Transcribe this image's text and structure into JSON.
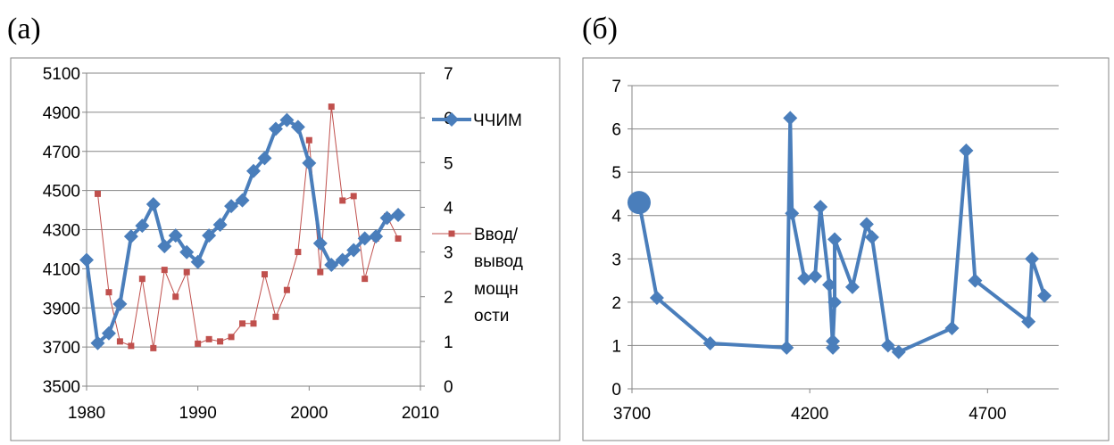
{
  "panels": {
    "a_label": "(а)",
    "b_label": "(б)"
  },
  "colors": {
    "blue": "#4a7ebb",
    "red": "#c0504d",
    "grid": "#868686",
    "frame": "#868686"
  },
  "chart_data": [
    {
      "type": "line",
      "panel": "(а)",
      "title": "",
      "xlabel": "",
      "ylabel": "",
      "x": [
        1980,
        1981,
        1982,
        1983,
        1984,
        1985,
        1986,
        1987,
        1988,
        1989,
        1990,
        1991,
        1992,
        1993,
        1994,
        1995,
        1996,
        1997,
        1998,
        1999,
        2000,
        2001,
        2002,
        2003,
        2004,
        2005,
        2006,
        2007,
        2008
      ],
      "xlim": [
        1980,
        2010
      ],
      "xticks": [
        "1980",
        "1990",
        "2000",
        "2010"
      ],
      "ylim_left": [
        3500,
        5100
      ],
      "yticks_left": [
        "3500",
        "3700",
        "3900",
        "4100",
        "4300",
        "4500",
        "4700",
        "4900",
        "5100"
      ],
      "ylim_right": [
        0,
        7
      ],
      "yticks_right": [
        "0",
        "1",
        "2",
        "3",
        "4",
        "5",
        "6",
        "7"
      ],
      "grid": true,
      "legend_position": "right",
      "series": [
        {
          "name": "ЧЧИМ",
          "axis": "left",
          "color": "#4a7ebb",
          "marker": "diamond",
          "values": [
            4145,
            3720,
            3770,
            3920,
            4265,
            4320,
            4430,
            4215,
            4270,
            4185,
            4135,
            4270,
            4325,
            4420,
            4450,
            4600,
            4665,
            4815,
            4860,
            4825,
            4640,
            4230,
            4120,
            4145,
            4195,
            4255,
            4265,
            4360,
            4375
          ]
        },
        {
          "name": "Ввод/вывод мощности",
          "legend_lines": [
            "Ввод/",
            "вывод",
            "мощн",
            "ости"
          ],
          "axis": "right",
          "color": "#c0504d",
          "marker": "square",
          "values": [
            null,
            4.3,
            2.1,
            1.0,
            0.9,
            2.4,
            0.85,
            2.6,
            2.0,
            2.55,
            0.95,
            1.05,
            1.0,
            1.1,
            1.4,
            1.4,
            2.5,
            1.55,
            2.15,
            3.0,
            5.5,
            2.55,
            6.25,
            4.15,
            4.25,
            2.4,
            3.3,
            3.8,
            3.3
          ]
        }
      ]
    },
    {
      "type": "line",
      "panel": "(б)",
      "title": "",
      "xlabel": "",
      "ylabel": "",
      "xlim": [
        3700,
        4900
      ],
      "xticks": [
        "3700",
        "4200",
        "4700"
      ],
      "ylim": [
        0,
        7
      ],
      "yticks": [
        "0",
        "1",
        "2",
        "3",
        "4",
        "5",
        "6",
        "7"
      ],
      "grid": true,
      "series": [
        {
          "color": "#4a7ebb",
          "marker": "diamond",
          "start_marker": "circle",
          "x": [
            3720,
            3770,
            3920,
            4135,
            4145,
            4150,
            4185,
            4215,
            4230,
            4255,
            4265,
            4265,
            4270,
            4270,
            4320,
            4360,
            4375,
            4420,
            4450,
            4600,
            4640,
            4665,
            4815,
            4825,
            4860
          ],
          "y": [
            4.3,
            2.1,
            1.05,
            0.95,
            6.25,
            4.05,
            2.55,
            2.6,
            4.2,
            2.4,
            0.95,
            1.1,
            2.0,
            3.45,
            2.35,
            3.8,
            3.5,
            1.0,
            0.85,
            1.4,
            5.5,
            2.5,
            1.55,
            3.0,
            2.15
          ]
        }
      ]
    }
  ]
}
